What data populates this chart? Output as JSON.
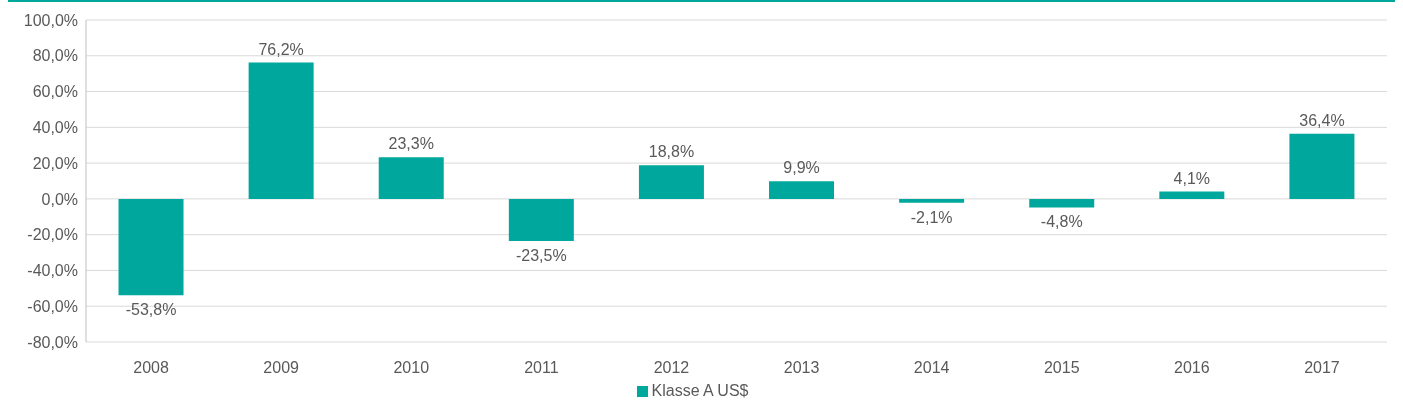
{
  "chart_data": {
    "type": "bar",
    "categories": [
      "2008",
      "2009",
      "2010",
      "2011",
      "2012",
      "2013",
      "2014",
      "2015",
      "2016",
      "2017"
    ],
    "series": [
      {
        "name": "Klasse A US$",
        "color": "#00a79d",
        "values": [
          -53.8,
          76.2,
          23.3,
          -23.5,
          18.8,
          9.9,
          -2.1,
          -4.8,
          4.1,
          36.4
        ],
        "value_labels": [
          "-53,8%",
          "76,2%",
          "23,3%",
          "-23,5%",
          "18,8%",
          "9,9%",
          "-2,1%",
          "-4,8%",
          "4,1%",
          "36,4%"
        ]
      }
    ],
    "ylim": [
      -80,
      100
    ],
    "yticks": [
      {
        "value": -80,
        "label": "-80,0%"
      },
      {
        "value": -60,
        "label": "-60,0%"
      },
      {
        "value": -40,
        "label": "-40,0%"
      },
      {
        "value": -20,
        "label": "-20,0%"
      },
      {
        "value": 0,
        "label": "0,0%"
      },
      {
        "value": 20,
        "label": "20,0%"
      },
      {
        "value": 40,
        "label": "40,0%"
      },
      {
        "value": 60,
        "label": "60,0%"
      },
      {
        "value": 80,
        "label": "80,0%"
      },
      {
        "value": 100,
        "label": "100,0%"
      }
    ],
    "grid": "y",
    "legend": "bottom"
  }
}
